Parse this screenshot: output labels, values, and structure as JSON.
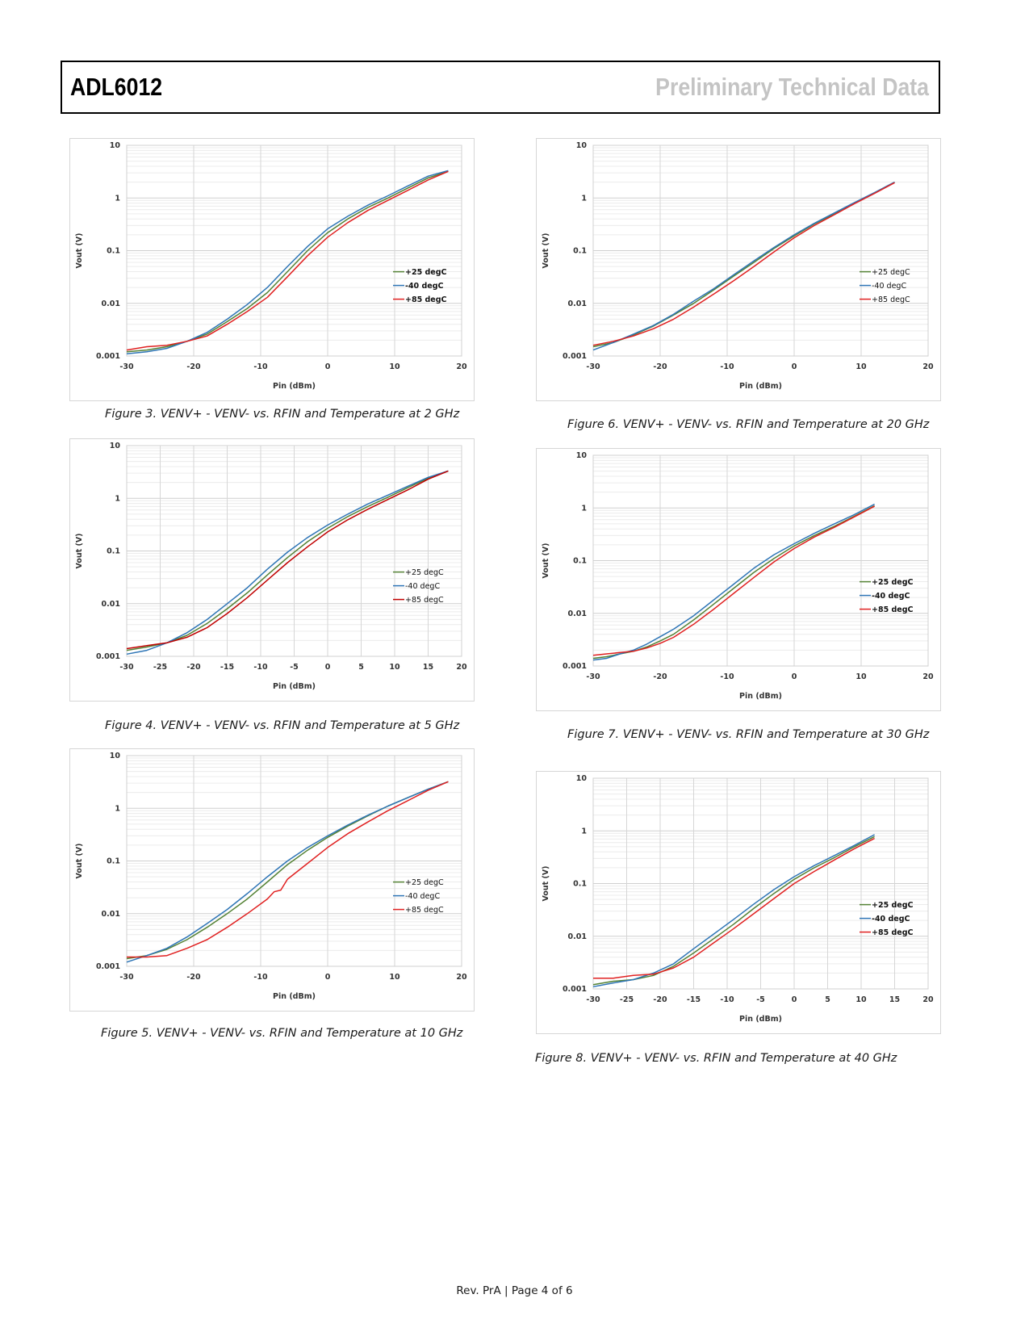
{
  "header": {
    "part_number": "ADL6012",
    "doc_status": "Preliminary Technical Data"
  },
  "footer": {
    "text": "Rev. PrA | Page 4 of 6"
  },
  "figures": [
    {
      "caption": "Figure 3. VENV+ - VENV- vs. RFIN and Temperature  at 2 GHz"
    },
    {
      "caption": "Figure 4. VENV+ - VENV- vs. RFIN and Temperature  at 5 GHz"
    },
    {
      "caption": "Figure 5.  VENV+ - VENV- vs. RFIN and Temperature  at 10 GHz"
    },
    {
      "caption": "Figure 6. VENV+ - VENV- vs. RFIN and Temperature  at 20  GHz"
    },
    {
      "caption": "Figure 7. VENV+ - VENV- vs. RFIN and Temperature  at 30  GHz"
    },
    {
      "caption": "Figure 8. VENV+ - VENV- vs. RFIN and Temperature  at 40  GHz"
    }
  ],
  "chart_data": [
    {
      "type": "line",
      "xlabel": "Pin (dBm)",
      "ylabel": "Vout (V)",
      "xlim": [
        -30,
        20
      ],
      "ylim": [
        0.001,
        10
      ],
      "y_scale": "log",
      "x_ticks": [
        -30,
        -20,
        -10,
        0,
        10,
        20
      ],
      "y_ticks": [
        "0.001",
        "0.01",
        "0.1",
        "1",
        "10"
      ],
      "grid": true,
      "legend_bold": true,
      "series": [
        {
          "name": "+25 degC",
          "color": "#548235",
          "x": [
            -30,
            -27,
            -24,
            -21,
            -18,
            -15,
            -12,
            -9,
            -6,
            -3,
            0,
            3,
            6,
            9,
            12,
            15,
            18
          ],
          "y": [
            0.0012,
            0.0013,
            0.0015,
            0.0019,
            0.0026,
            0.0045,
            0.008,
            0.016,
            0.04,
            0.1,
            0.22,
            0.4,
            0.66,
            1.0,
            1.55,
            2.4,
            3.2
          ]
        },
        {
          "name": "-40 degC",
          "color": "#2e75b6",
          "x": [
            -30,
            -27,
            -24,
            -21,
            -18,
            -15,
            -12,
            -9,
            -6,
            -3,
            0,
            3,
            6,
            9,
            12,
            15,
            18
          ],
          "y": [
            0.0011,
            0.0012,
            0.0014,
            0.0019,
            0.0028,
            0.005,
            0.0095,
            0.02,
            0.05,
            0.12,
            0.26,
            0.45,
            0.73,
            1.1,
            1.7,
            2.6,
            3.3
          ]
        },
        {
          "name": "+85 degC",
          "color": "#e02020",
          "x": [
            -30,
            -27,
            -24,
            -21,
            -18,
            -15,
            -12,
            -9,
            -6,
            -3,
            0,
            3,
            6,
            9,
            12,
            15,
            18
          ],
          "y": [
            0.0013,
            0.0015,
            0.0016,
            0.0019,
            0.0024,
            0.004,
            0.007,
            0.013,
            0.032,
            0.08,
            0.18,
            0.34,
            0.58,
            0.9,
            1.4,
            2.2,
            3.2
          ]
        }
      ]
    },
    {
      "type": "line",
      "xlabel": "Pin (dBm)",
      "ylabel": "Vout (V)",
      "xlim": [
        -30,
        20
      ],
      "ylim": [
        0.001,
        10
      ],
      "y_scale": "log",
      "x_ticks": [
        -30,
        -25,
        -20,
        -15,
        -10,
        -5,
        0,
        5,
        10,
        15,
        20
      ],
      "y_ticks": [
        "0.001",
        "0.01",
        "0.1",
        "1",
        "10"
      ],
      "grid": true,
      "legend_bold": false,
      "series": [
        {
          "name": "+25 degC",
          "color": "#548235",
          "x": [
            -30,
            -27,
            -24,
            -21,
            -18,
            -15,
            -12,
            -9,
            -6,
            -3,
            0,
            3,
            6,
            9,
            12,
            15,
            18
          ],
          "y": [
            0.0013,
            0.0015,
            0.0018,
            0.0025,
            0.0042,
            0.008,
            0.016,
            0.035,
            0.075,
            0.15,
            0.27,
            0.45,
            0.7,
            1.05,
            1.6,
            2.4,
            3.3
          ]
        },
        {
          "name": "-40 degC",
          "color": "#2e75b6",
          "x": [
            -30,
            -27,
            -24,
            -21,
            -18,
            -15,
            -12,
            -9,
            -6,
            -3,
            0,
            3,
            6,
            9,
            12,
            15,
            18
          ],
          "y": [
            0.0011,
            0.0013,
            0.0018,
            0.0028,
            0.005,
            0.01,
            0.02,
            0.045,
            0.095,
            0.18,
            0.31,
            0.5,
            0.78,
            1.15,
            1.7,
            2.5,
            3.3
          ]
        },
        {
          "name": "+85 degC",
          "color": "#c00000",
          "x": [
            -30,
            -27,
            -24,
            -21,
            -18,
            -15,
            -12,
            -9,
            -6,
            -3,
            0,
            3,
            6,
            9,
            12,
            15,
            18
          ],
          "y": [
            0.0014,
            0.0016,
            0.0018,
            0.0023,
            0.0035,
            0.0065,
            0.013,
            0.028,
            0.06,
            0.12,
            0.23,
            0.39,
            0.62,
            0.95,
            1.45,
            2.3,
            3.3
          ]
        }
      ]
    },
    {
      "type": "line",
      "xlabel": "Pin (dBm)",
      "ylabel": "Vout (V)",
      "xlim": [
        -30,
        20
      ],
      "ylim": [
        0.001,
        10
      ],
      "y_scale": "log",
      "x_ticks": [
        -30,
        -20,
        -10,
        0,
        10,
        20
      ],
      "y_ticks": [
        "0.001",
        "0.01",
        "0.1",
        "1",
        "10"
      ],
      "grid": true,
      "legend_bold": false,
      "series": [
        {
          "name": "+25 degC",
          "color": "#548235",
          "x": [
            -30,
            -27,
            -24,
            -21,
            -18,
            -15,
            -12,
            -9,
            -6,
            -3,
            0,
            3,
            6,
            9,
            12,
            15,
            18
          ],
          "y": [
            0.0014,
            0.0016,
            0.0021,
            0.0032,
            0.0055,
            0.01,
            0.019,
            0.04,
            0.085,
            0.16,
            0.28,
            0.46,
            0.72,
            1.1,
            1.6,
            2.3,
            3.2
          ]
        },
        {
          "name": "-40 degC",
          "color": "#2e75b6",
          "x": [
            -30,
            -27,
            -24,
            -21,
            -18,
            -15,
            -12,
            -9,
            -6,
            -3,
            0,
            3,
            6,
            9,
            12,
            15,
            18
          ],
          "y": [
            0.0012,
            0.0016,
            0.0022,
            0.0036,
            0.0065,
            0.012,
            0.024,
            0.05,
            0.1,
            0.18,
            0.3,
            0.48,
            0.74,
            1.1,
            1.6,
            2.3,
            3.2
          ]
        },
        {
          "name": "+85 degC",
          "color": "#e02020",
          "x": [
            -30,
            -27,
            -24,
            -21,
            -18,
            -15,
            -12,
            -9,
            -8,
            -7,
            -6,
            -3,
            0,
            3,
            6,
            9,
            12,
            15,
            18
          ],
          "y": [
            0.0015,
            0.0015,
            0.0016,
            0.0022,
            0.0032,
            0.0055,
            0.01,
            0.019,
            0.026,
            0.028,
            0.045,
            0.09,
            0.18,
            0.33,
            0.55,
            0.9,
            1.4,
            2.2,
            3.2
          ]
        }
      ]
    },
    {
      "type": "line",
      "xlabel": "Pin (dBm)",
      "ylabel": "Vout (V)",
      "xlim": [
        -30,
        20
      ],
      "ylim": [
        0.001,
        10
      ],
      "y_scale": "log",
      "x_ticks": [
        -30,
        -20,
        -10,
        0,
        10,
        20
      ],
      "y_ticks": [
        "0.001",
        "0.01",
        "0.1",
        "1",
        "10"
      ],
      "grid": true,
      "legend_bold": false,
      "series": [
        {
          "name": "+25 degC",
          "color": "#548235",
          "x": [
            -30,
            -27,
            -24,
            -21,
            -18,
            -15,
            -12,
            -9,
            -6,
            -3,
            0,
            3,
            6,
            9,
            12,
            15
          ],
          "y": [
            0.0015,
            0.0018,
            0.0025,
            0.0037,
            0.006,
            0.01,
            0.018,
            0.033,
            0.06,
            0.11,
            0.19,
            0.32,
            0.5,
            0.8,
            1.25,
            2.0
          ]
        },
        {
          "name": "-40 degC",
          "color": "#2e75b6",
          "x": [
            -30,
            -27,
            -24,
            -21,
            -18,
            -15,
            -12,
            -9,
            -6,
            -3,
            0,
            3,
            6,
            9,
            12,
            15
          ],
          "y": [
            0.0013,
            0.0018,
            0.0026,
            0.0038,
            0.0062,
            0.011,
            0.019,
            0.035,
            0.064,
            0.115,
            0.2,
            0.33,
            0.52,
            0.82,
            1.27,
            2.0
          ]
        },
        {
          "name": "+85 degC",
          "color": "#e02020",
          "x": [
            -30,
            -27,
            -24,
            -21,
            -18,
            -15,
            -12,
            -9,
            -6,
            -3,
            0,
            3,
            6,
            9,
            12,
            15
          ],
          "y": [
            0.0016,
            0.0019,
            0.0024,
            0.0033,
            0.005,
            0.0085,
            0.015,
            0.027,
            0.05,
            0.095,
            0.175,
            0.3,
            0.48,
            0.78,
            1.22,
            1.95
          ]
        }
      ]
    },
    {
      "type": "line",
      "xlabel": "Pin (dBm)",
      "ylabel": "Vout (V)",
      "xlim": [
        -30,
        20
      ],
      "ylim": [
        0.001,
        10
      ],
      "y_scale": "log",
      "x_ticks": [
        -30,
        -20,
        -10,
        0,
        10,
        20
      ],
      "y_ticks": [
        "0.001",
        "0.01",
        "0.1",
        "1",
        "10"
      ],
      "grid": true,
      "legend_bold": true,
      "series": [
        {
          "name": "+25 degC",
          "color": "#548235",
          "x": [
            -30,
            -28,
            -26,
            -24,
            -22,
            -20,
            -18,
            -15,
            -12,
            -9,
            -6,
            -3,
            0,
            3,
            6,
            9,
            12
          ],
          "y": [
            0.0014,
            0.0015,
            0.0017,
            0.0019,
            0.0023,
            0.003,
            0.004,
            0.0075,
            0.015,
            0.03,
            0.06,
            0.11,
            0.19,
            0.3,
            0.45,
            0.7,
            1.1
          ]
        },
        {
          "name": "-40 degC",
          "color": "#2e75b6",
          "x": [
            -30,
            -28,
            -26,
            -24,
            -22,
            -20,
            -18,
            -15,
            -12,
            -9,
            -6,
            -3,
            0,
            3,
            6,
            9,
            12
          ],
          "y": [
            0.0013,
            0.0014,
            0.0017,
            0.002,
            0.0026,
            0.0036,
            0.005,
            0.009,
            0.018,
            0.036,
            0.072,
            0.13,
            0.21,
            0.33,
            0.5,
            0.75,
            1.18
          ]
        },
        {
          "name": "+85 degC",
          "color": "#e02020",
          "x": [
            -30,
            -28,
            -26,
            -24,
            -22,
            -20,
            -18,
            -15,
            -12,
            -9,
            -6,
            -3,
            0,
            3,
            6,
            9,
            12
          ],
          "y": [
            0.0016,
            0.0017,
            0.0018,
            0.0019,
            0.0022,
            0.0027,
            0.0035,
            0.0062,
            0.012,
            0.024,
            0.048,
            0.095,
            0.17,
            0.28,
            0.43,
            0.68,
            1.08
          ]
        }
      ]
    },
    {
      "type": "line",
      "xlabel": "Pin (dBm)",
      "ylabel": "Vout (V)",
      "xlim": [
        -30,
        20
      ],
      "ylim": [
        0.001,
        10
      ],
      "y_scale": "log",
      "x_ticks": [
        -30,
        -25,
        -20,
        -15,
        -10,
        -5,
        0,
        5,
        10,
        15,
        20
      ],
      "y_ticks": [
        "0.001",
        "0.01",
        "0.1",
        "1",
        "10"
      ],
      "grid": true,
      "legend_bold": true,
      "series": [
        {
          "name": "+25 degC",
          "color": "#548235",
          "x": [
            -30,
            -27,
            -24,
            -21,
            -18,
            -15,
            -12,
            -9,
            -6,
            -3,
            0,
            3,
            6,
            9,
            12
          ],
          "y": [
            0.0012,
            0.0014,
            0.0015,
            0.0018,
            0.0027,
            0.0048,
            0.009,
            0.017,
            0.034,
            0.065,
            0.12,
            0.2,
            0.31,
            0.5,
            0.78
          ]
        },
        {
          "name": "-40 degC",
          "color": "#2e75b6",
          "x": [
            -30,
            -27,
            -24,
            -21,
            -18,
            -15,
            -12,
            -9,
            -6,
            -3,
            0,
            3,
            6,
            9,
            12
          ],
          "y": [
            0.0011,
            0.0013,
            0.0015,
            0.002,
            0.003,
            0.0058,
            0.011,
            0.021,
            0.041,
            0.077,
            0.135,
            0.22,
            0.34,
            0.53,
            0.85
          ]
        },
        {
          "name": "+85 degC",
          "color": "#e02020",
          "x": [
            -30,
            -27,
            -24,
            -21,
            -18,
            -15,
            -12,
            -9,
            -6,
            -3,
            0,
            3,
            6,
            9,
            12
          ],
          "y": [
            0.0016,
            0.0016,
            0.0018,
            0.0019,
            0.0025,
            0.004,
            0.0075,
            0.014,
            0.027,
            0.052,
            0.1,
            0.17,
            0.28,
            0.46,
            0.72
          ]
        }
      ]
    }
  ]
}
